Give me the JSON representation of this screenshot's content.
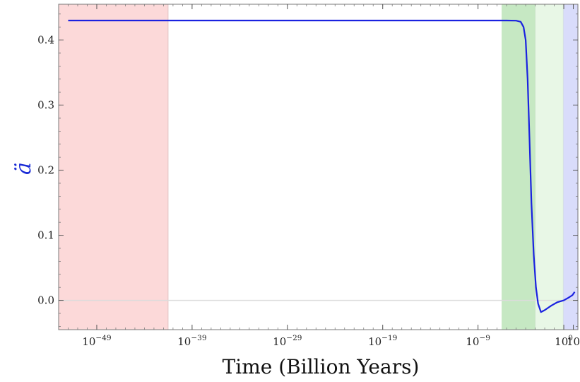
{
  "chart_data": {
    "type": "line",
    "title": "",
    "xlabel": "Time (Billion Years)",
    "ylabel": "ä",
    "x_scale": "log10",
    "xlim": [
      1e-53,
      30.0
    ],
    "ylim": [
      -0.045,
      0.455
    ],
    "x_ticks": [
      {
        "value": 1e-49,
        "base": "10",
        "exp": "−49"
      },
      {
        "value": 1e-39,
        "base": "10",
        "exp": "−39"
      },
      {
        "value": 1e-29,
        "base": "10",
        "exp": "−29"
      },
      {
        "value": 1e-19,
        "base": "10",
        "exp": "−19"
      },
      {
        "value": 1e-09,
        "base": "10",
        "exp": "−9"
      },
      {
        "value": 1,
        "base": "10",
        "exp": "0"
      },
      {
        "value": 10,
        "base": "10",
        "exp": ""
      }
    ],
    "y_ticks": [
      {
        "value": 0.0,
        "label": "0.0"
      },
      {
        "value": 0.1,
        "label": "0.1"
      },
      {
        "value": 0.2,
        "label": "0.2"
      },
      {
        "value": 0.3,
        "label": "0.3"
      },
      {
        "value": 0.4,
        "label": "0.4"
      }
    ],
    "bands": [
      {
        "x0": 1e-53,
        "x1": 3e-42,
        "color": "#fcd9d9"
      },
      {
        "x0": 3e-07,
        "x1": 0.001,
        "color": "#c6e8c3"
      },
      {
        "x0": 0.001,
        "x1": 0.9,
        "color": "#e8f7e6"
      },
      {
        "x0": 0.9,
        "x1": 30.0,
        "color": "#d9dcfb"
      }
    ],
    "zero_line": 0,
    "grid": false,
    "series": [
      {
        "name": "",
        "color": "#1a22e0",
        "points": [
          [
            1e-52,
            0.43
          ],
          [
            1e-40,
            0.43
          ],
          [
            1e-20,
            0.43
          ],
          [
            1e-06,
            0.43
          ],
          [
            1e-05,
            0.4298
          ],
          [
            3e-05,
            0.428
          ],
          [
            6e-05,
            0.42
          ],
          [
            0.0001,
            0.4
          ],
          [
            0.00016,
            0.34
          ],
          [
            0.00025,
            0.25
          ],
          [
            0.0004,
            0.15
          ],
          [
            0.0007,
            0.07
          ],
          [
            0.0012,
            0.02
          ],
          [
            0.002,
            -0.005
          ],
          [
            0.004,
            -0.018
          ],
          [
            0.01,
            -0.015
          ],
          [
            0.05,
            -0.008
          ],
          [
            0.2,
            -0.003
          ],
          [
            1.0,
            0.0
          ],
          [
            3.0,
            0.004
          ],
          [
            8.0,
            0.008
          ],
          [
            13.8,
            0.013
          ]
        ]
      }
    ]
  }
}
